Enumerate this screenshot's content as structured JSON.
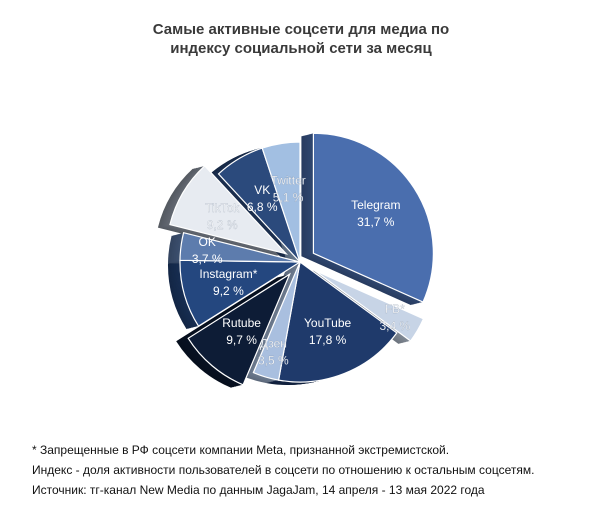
{
  "title_lines": [
    "Самые активные соцсети для медиа по",
    "индексу социальной сети за месяц"
  ],
  "chart_data": {
    "type": "pie",
    "title": "Самые активные соцсети для медиа по индексу социальной сети за месяц",
    "slices": [
      {
        "name": "Telegram",
        "value_label": "31,7 %",
        "value": 31.7,
        "color": "#4a6eae",
        "exploded": true
      },
      {
        "name": "FB*",
        "value_label": "3,4 %",
        "value": 3.4,
        "color": "#c7d4e6",
        "exploded": true
      },
      {
        "name": "YouTube",
        "value_label": "17,8 %",
        "value": 17.8,
        "color": "#1f3a6b",
        "exploded": false
      },
      {
        "name": "Дзен",
        "value_label": "3,5 %",
        "value": 3.5,
        "color": "#a9bfdf",
        "exploded": false
      },
      {
        "name": "Rutube",
        "value_label": "9,7 %",
        "value": 9.7,
        "color": "#0d1c36",
        "exploded": true
      },
      {
        "name": "Instagram*",
        "value_label": "9,2 %",
        "value": 9.2,
        "color": "#24477f",
        "exploded": false
      },
      {
        "name": "OK",
        "value_label": "3,7 %",
        "value": 3.7,
        "color": "#5d7cad",
        "exploded": false
      },
      {
        "name": "TikTok",
        "value_label": "9,2 %",
        "value": 9.2,
        "color": "#e7ebf1",
        "exploded": true
      },
      {
        "name": "VK",
        "value_label": "6,8 %",
        "value": 6.8,
        "color": "#2b4a7c",
        "exploded": false
      },
      {
        "name": "Twitter",
        "value_label": "5,1 %",
        "value": 5.1,
        "color": "#a2bfe2",
        "exploded": false
      }
    ]
  },
  "footnotes": [
    "* Запрещенные в РФ соцсети компании Meta, признанной экстремистской.",
    "Индекс - доля активности пользователей в соцсети по отношению к остальным соцсетям.",
    "Источник: тг-канал New Media по данным JagaJam, 14 апреля - 13 мая 2022 года"
  ]
}
